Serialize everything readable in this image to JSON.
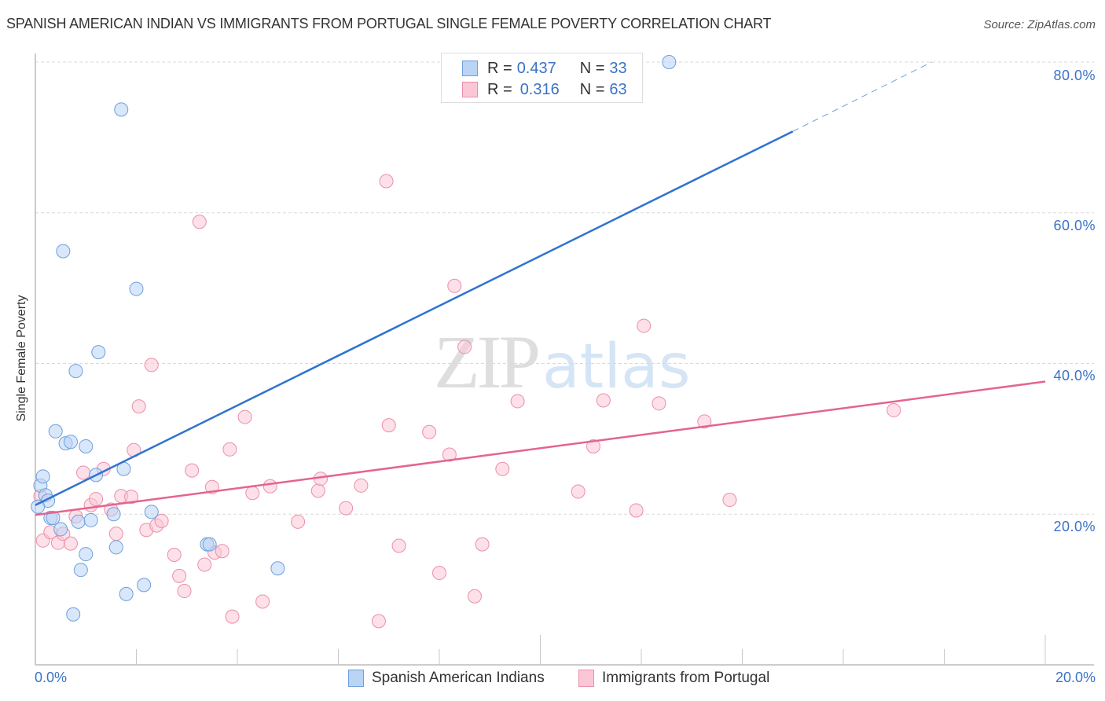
{
  "header": {
    "title": "SPANISH AMERICAN INDIAN VS IMMIGRANTS FROM PORTUGAL SINGLE FEMALE POVERTY CORRELATION CHART",
    "source": "Source: ZipAtlas.com"
  },
  "legend": {
    "rows": [
      {
        "r_label": "R = ",
        "r_value": "0.437",
        "n_label": "N = ",
        "n_value": "33",
        "color": "#6e9fdc"
      },
      {
        "r_label": "R = ",
        "r_value": "0.316",
        "n_label": "N = ",
        "n_value": "63",
        "color": "#ea8fac"
      }
    ]
  },
  "bottom_legend": {
    "items": [
      {
        "label": "Spanish American Indians",
        "color": "#b9d4f5"
      },
      {
        "label": "Immigrants from Portugal",
        "color": "#fbc7d6"
      }
    ]
  },
  "axes": {
    "ylabel": "Single Female Poverty",
    "y_ticks": [
      "80.0%",
      "60.0%",
      "40.0%",
      "20.0%"
    ],
    "x_ticks": [
      "0.0%",
      "20.0%"
    ]
  },
  "watermark": {
    "zip": "ZIP",
    "atlas": "atlas"
  },
  "chart_data": {
    "type": "scatter",
    "title": "SPANISH AMERICAN INDIAN VS IMMIGRANTS FROM PORTUGAL SINGLE FEMALE POVERTY CORRELATION CHART",
    "xlabel": "",
    "ylabel": "Single Female Poverty",
    "xlim": [
      0,
      20
    ],
    "ylim": [
      0,
      80
    ],
    "x_tick_labels": [
      "0.0%",
      "20.0%"
    ],
    "y_tick_labels": [
      "20.0%",
      "40.0%",
      "60.0%",
      "80.0%"
    ],
    "grid": true,
    "legend_position": "top-center",
    "series": [
      {
        "name": "Spanish American Indians",
        "color": "#6e9fdc",
        "R": 0.437,
        "N": 33,
        "trendline": {
          "x": [
            0,
            15.0,
            17.75
          ],
          "y": [
            21.2,
            70.8,
            80.0
          ],
          "dashed_after_x": 15.0
        },
        "points": [
          [
            0.1,
            23.8
          ],
          [
            0.15,
            25.0
          ],
          [
            0.2,
            22.5
          ],
          [
            0.25,
            21.8
          ],
          [
            0.3,
            19.5
          ],
          [
            0.35,
            19.5
          ],
          [
            0.4,
            31.0
          ],
          [
            0.5,
            18.0
          ],
          [
            0.55,
            54.9
          ],
          [
            0.6,
            29.4
          ],
          [
            0.7,
            29.6
          ],
          [
            0.75,
            6.7
          ],
          [
            0.8,
            39.0
          ],
          [
            0.85,
            19.0
          ],
          [
            0.9,
            12.6
          ],
          [
            1.0,
            14.7
          ],
          [
            1.0,
            29.0
          ],
          [
            1.1,
            19.2
          ],
          [
            1.2,
            25.2
          ],
          [
            1.25,
            41.5
          ],
          [
            1.55,
            20.0
          ],
          [
            1.6,
            15.6
          ],
          [
            1.7,
            73.7
          ],
          [
            1.75,
            26.0
          ],
          [
            1.8,
            9.4
          ],
          [
            2.0,
            49.9
          ],
          [
            2.15,
            10.6
          ],
          [
            2.3,
            20.3
          ],
          [
            3.4,
            16.0
          ],
          [
            3.45,
            16.0
          ],
          [
            4.8,
            12.8
          ],
          [
            12.55,
            80.0
          ],
          [
            0.05,
            21.0
          ]
        ]
      },
      {
        "name": "Immigrants from Portugal",
        "color": "#ea8fac",
        "R": 0.316,
        "N": 63,
        "trendline": {
          "x": [
            0,
            20
          ],
          "y": [
            19.9,
            37.6
          ]
        },
        "points": [
          [
            0.1,
            22.4
          ],
          [
            0.15,
            16.5
          ],
          [
            0.3,
            17.6
          ],
          [
            0.45,
            16.2
          ],
          [
            0.55,
            17.4
          ],
          [
            0.7,
            16.1
          ],
          [
            0.8,
            19.7
          ],
          [
            0.95,
            25.5
          ],
          [
            1.1,
            21.2
          ],
          [
            1.2,
            22.0
          ],
          [
            1.35,
            26.0
          ],
          [
            1.5,
            20.6
          ],
          [
            1.6,
            17.4
          ],
          [
            1.7,
            22.4
          ],
          [
            1.9,
            22.3
          ],
          [
            1.95,
            28.5
          ],
          [
            2.05,
            34.3
          ],
          [
            2.2,
            17.9
          ],
          [
            2.3,
            39.8
          ],
          [
            2.4,
            18.5
          ],
          [
            2.5,
            19.1
          ],
          [
            2.75,
            14.6
          ],
          [
            2.85,
            11.8
          ],
          [
            2.95,
            9.8
          ],
          [
            3.1,
            25.8
          ],
          [
            3.25,
            58.8
          ],
          [
            3.35,
            13.3
          ],
          [
            3.5,
            23.6
          ],
          [
            3.55,
            14.9
          ],
          [
            3.7,
            15.1
          ],
          [
            3.85,
            28.6
          ],
          [
            3.9,
            6.4
          ],
          [
            4.15,
            32.9
          ],
          [
            4.3,
            22.8
          ],
          [
            4.5,
            8.4
          ],
          [
            4.65,
            23.7
          ],
          [
            5.2,
            19.0
          ],
          [
            5.6,
            23.1
          ],
          [
            5.65,
            24.7
          ],
          [
            6.15,
            20.8
          ],
          [
            6.45,
            23.8
          ],
          [
            6.8,
            5.8
          ],
          [
            6.95,
            64.2
          ],
          [
            7.0,
            31.8
          ],
          [
            7.2,
            15.8
          ],
          [
            7.8,
            30.9
          ],
          [
            8.0,
            12.2
          ],
          [
            8.2,
            27.9
          ],
          [
            8.3,
            50.3
          ],
          [
            8.5,
            42.2
          ],
          [
            8.7,
            9.1
          ],
          [
            8.85,
            16.0
          ],
          [
            9.25,
            26.0
          ],
          [
            9.55,
            35.0
          ],
          [
            10.75,
            23.0
          ],
          [
            11.05,
            29.0
          ],
          [
            11.25,
            35.1
          ],
          [
            11.9,
            20.5
          ],
          [
            12.05,
            45.0
          ],
          [
            12.35,
            34.7
          ],
          [
            13.25,
            32.3
          ],
          [
            13.75,
            21.9
          ],
          [
            17.0,
            33.8
          ]
        ]
      }
    ]
  }
}
